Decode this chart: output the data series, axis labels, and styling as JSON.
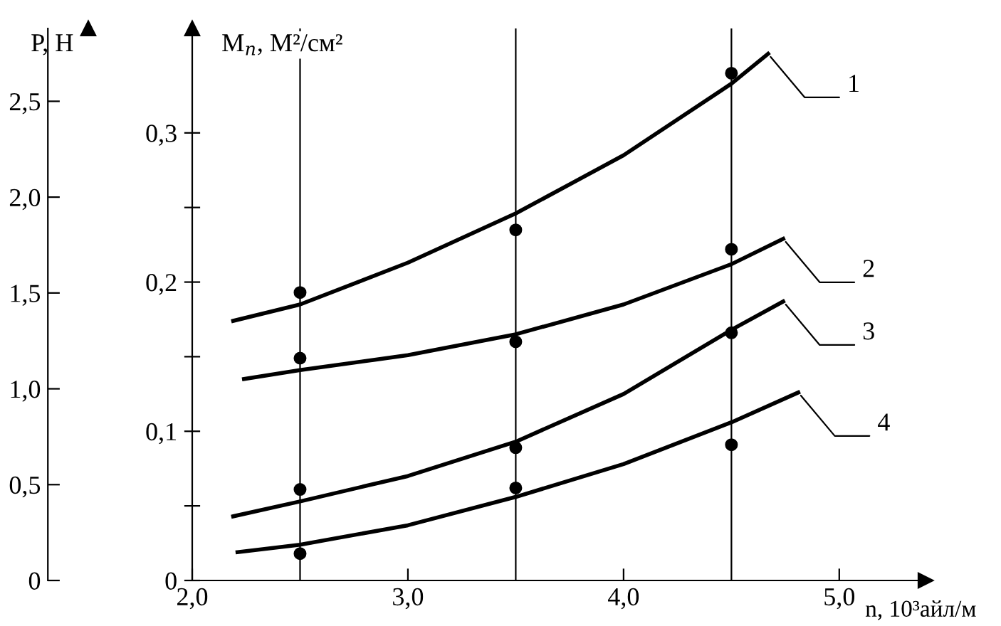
{
  "chart_data": {
    "type": "line",
    "xlabel": "n, 10³айл/м",
    "ylabel": "M$_{п}$, М²/см²",
    "y2label": "P, H",
    "xlim": [
      2.0,
      5.4
    ],
    "xticks": [
      {
        "value": 2.0,
        "label": "2,0"
      },
      {
        "value": 3.0,
        "label": "3,0"
      },
      {
        "value": 4.0,
        "label": "4,0"
      },
      {
        "value": 5.0,
        "label": "5,0"
      }
    ],
    "ylim": [
      0,
      0.37
    ],
    "yticks": [
      {
        "value": 0,
        "label": "0"
      },
      {
        "value": 0.05,
        "label": null
      },
      {
        "value": 0.1,
        "label": "0,1"
      },
      {
        "value": 0.15,
        "label": null
      },
      {
        "value": 0.2,
        "label": "0,2"
      },
      {
        "value": 0.25,
        "label": null
      },
      {
        "value": 0.3,
        "label": "0,3"
      }
    ],
    "y2lim": [
      0,
      2.88
    ],
    "y2ticks": [
      {
        "value": 0,
        "label": "0"
      },
      {
        "value": 0.5,
        "label": "0,5"
      },
      {
        "value": 1.0,
        "label": "1,0"
      },
      {
        "value": 1.5,
        "label": "1,5"
      },
      {
        "value": 2.0,
        "label": "2,0"
      },
      {
        "value": 2.5,
        "label": "2,5"
      }
    ],
    "grid": false,
    "legend": false,
    "line_style": "solid",
    "series": [
      {
        "color": "#000000",
        "marker": "none",
        "x": [
          2.19,
          2.5,
          3.0,
          3.5,
          4.0,
          4.5,
          4.67
        ],
        "values": [
          0.174,
          0.185,
          0.213,
          0.246,
          0.285,
          0.333,
          0.353
        ]
      },
      {
        "color": "#000000",
        "marker": "none",
        "x": [
          2.24,
          2.5,
          3.0,
          3.5,
          4.0,
          4.5,
          4.74
        ],
        "values": [
          0.135,
          0.141,
          0.151,
          0.165,
          0.185,
          0.212,
          0.229
        ]
      },
      {
        "color": "#000000",
        "marker": "none",
        "x": [
          2.19,
          2.5,
          3.0,
          3.5,
          4.0,
          4.5,
          4.74
        ],
        "values": [
          0.043,
          0.053,
          0.07,
          0.093,
          0.125,
          0.168,
          0.187
        ]
      },
      {
        "color": "#000000",
        "marker": "none",
        "x": [
          2.21,
          2.5,
          3.0,
          3.5,
          4.0,
          4.5,
          4.81
        ],
        "values": [
          0.019,
          0.024,
          0.037,
          0.056,
          0.078,
          0.106,
          0.126
        ]
      },
      {
        "type": "scatter",
        "color": "#000000",
        "marker": "circle",
        "x": [
          2.5,
          3.5,
          4.5
        ],
        "values": [
          0.193,
          0.235,
          0.34
        ]
      },
      {
        "type": "scatter",
        "color": "#000000",
        "marker": "circle",
        "x": [
          2.5,
          3.5,
          4.5
        ],
        "values": [
          0.149,
          0.16,
          0.222
        ]
      },
      {
        "type": "scatter",
        "color": "#000000",
        "marker": "circle",
        "x": [
          2.5,
          3.5,
          4.5
        ],
        "values": [
          0.061,
          0.089,
          0.166
        ]
      },
      {
        "type": "scatter",
        "color": "#000000",
        "marker": "circle",
        "x": [
          2.5,
          3.5,
          4.5
        ],
        "values": [
          0.018,
          0.062,
          0.091
        ]
      }
    ],
    "ref_lines": [
      {
        "axis": "x",
        "value": 2.5,
        "color": "#000000"
      },
      {
        "axis": "x",
        "value": 3.5,
        "color": "#000000"
      },
      {
        "axis": "x",
        "value": 4.5,
        "color": "#000000"
      }
    ],
    "annotations": [
      {
        "text": "1",
        "x": 4.67,
        "y": 0.353
      },
      {
        "text": "2",
        "x": 4.74,
        "y": 0.229
      },
      {
        "text": "3",
        "x": 4.74,
        "y": 0.187
      },
      {
        "text": "4",
        "x": 4.81,
        "y": 0.126
      }
    ]
  }
}
